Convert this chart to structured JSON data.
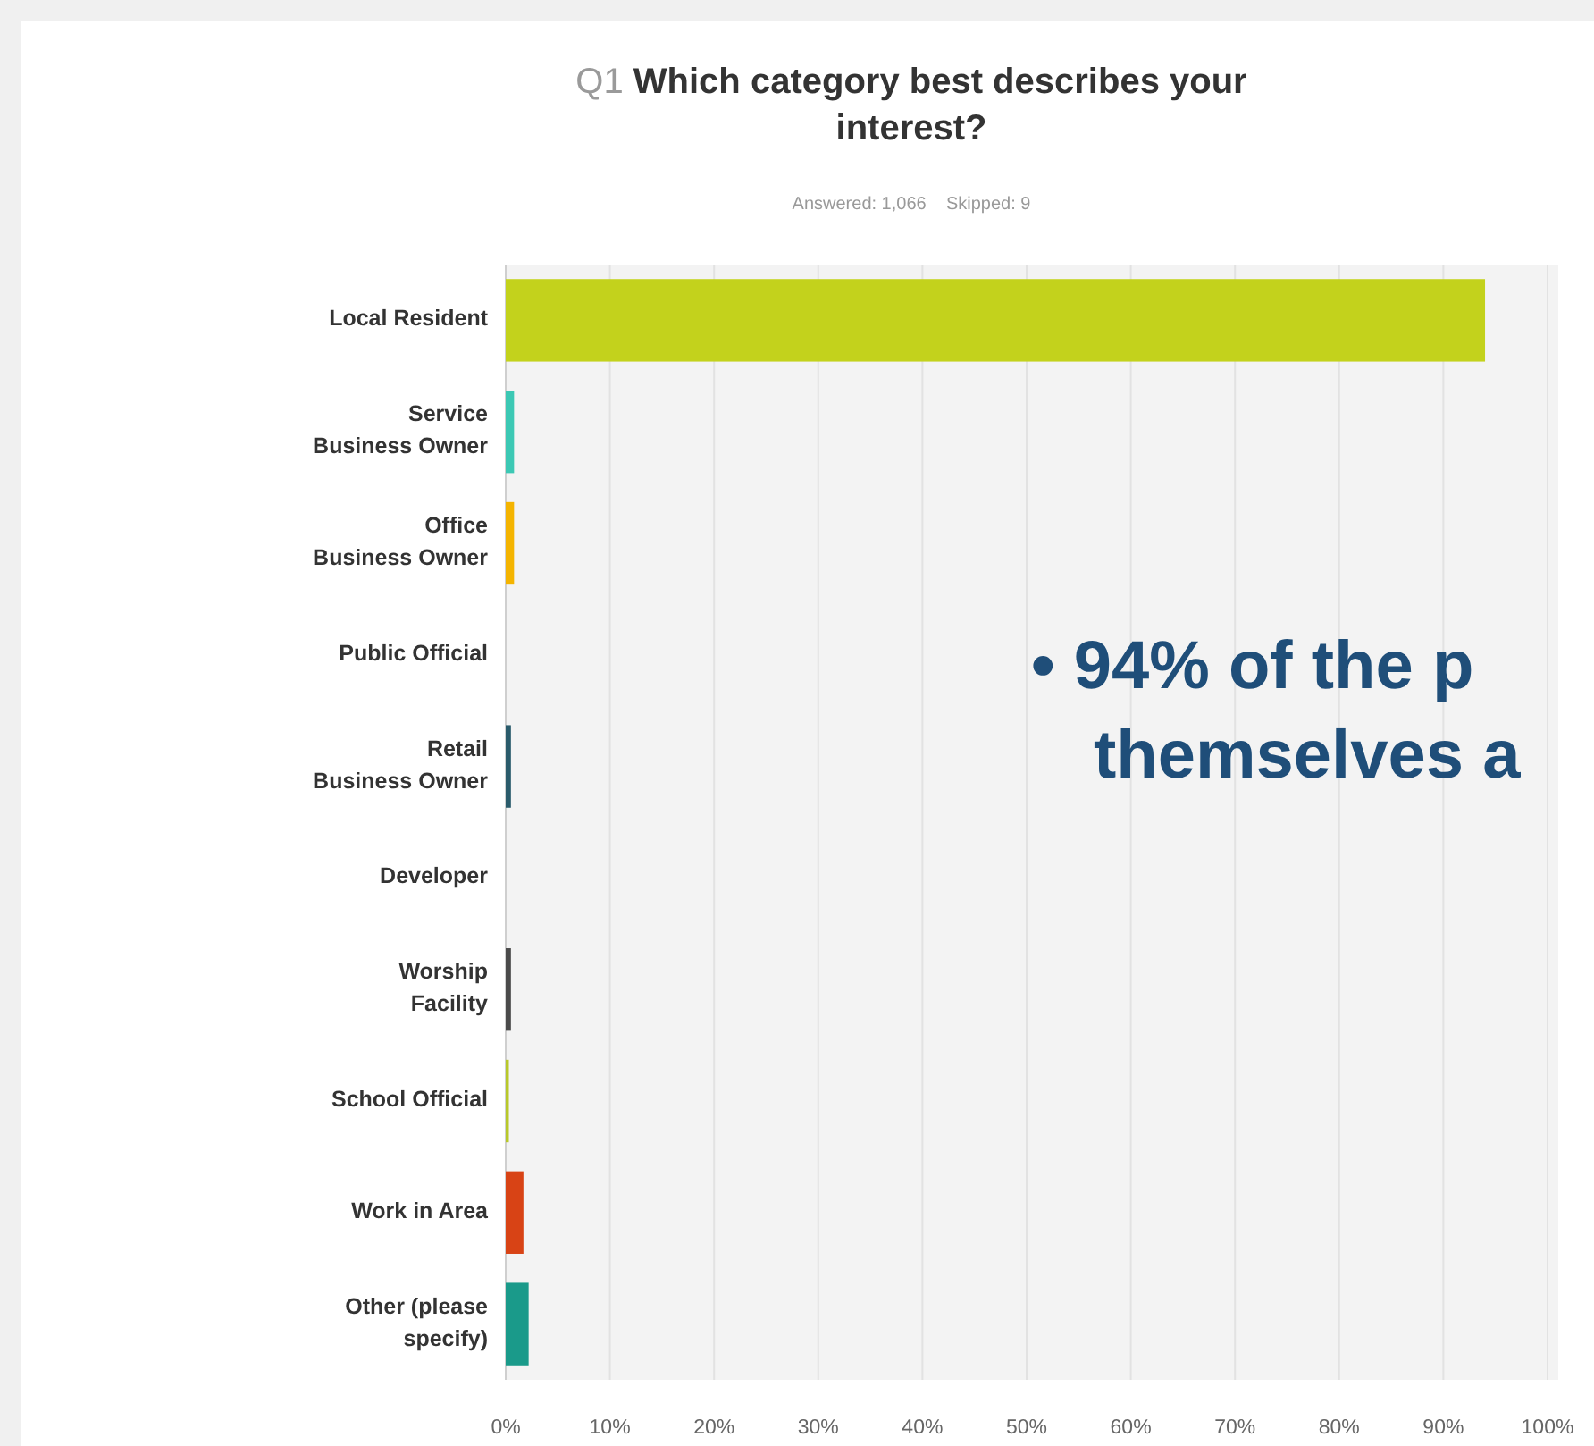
{
  "chart_data": {
    "type": "bar",
    "orientation": "horizontal",
    "title": "Q1 Which category best describes your\ninterest?",
    "subtitle": "Answered: 1,066    Skipped: 9",
    "categories": [
      "Local Resident",
      "Service\nBusiness Owner",
      "Office\nBusiness Owner",
      "Public Official",
      "Retail\nBusiness Owner",
      "Developer",
      "Worship\nFacility",
      "School Official",
      "Work in Area",
      "Other (please\nspecify)"
    ],
    "values": [
      94,
      0.8,
      0.8,
      0,
      0.5,
      0,
      0.5,
      0.3,
      1.7,
      2.2
    ],
    "colors": [
      "#c3d21c",
      "#3cc8b4",
      "#f4b400",
      "#7f7f7f",
      "#2a5b6b",
      "#888888",
      "#4a4a4a",
      "#b8c82a",
      "#d84315",
      "#1a9a8a"
    ],
    "xlim": [
      0,
      100
    ],
    "xticks": [
      {
        "value": 0,
        "label": "0%"
      },
      {
        "value": 10,
        "label": "10%"
      },
      {
        "value": 20,
        "label": "20%"
      },
      {
        "value": 30,
        "label": "30%"
      },
      {
        "value": 40,
        "label": "40%"
      },
      {
        "value": 50,
        "label": "50%"
      },
      {
        "value": 60,
        "label": "60%"
      },
      {
        "value": 70,
        "label": "70%"
      },
      {
        "value": 80,
        "label": "80%"
      },
      {
        "value": 90,
        "label": "90%"
      },
      {
        "value": 100,
        "label": "100%"
      }
    ],
    "grid": "x",
    "annotations": [
      "• 94% of the p",
      "themselves a"
    ]
  }
}
